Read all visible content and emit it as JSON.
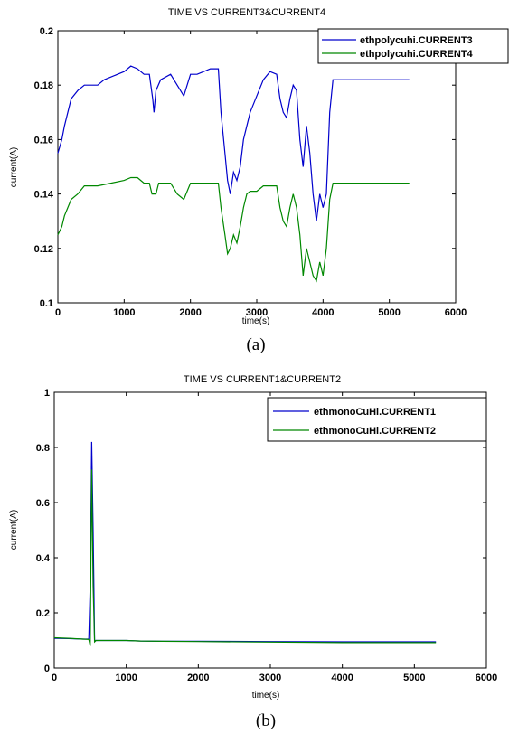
{
  "chart_data": [
    {
      "type": "line",
      "title": "TIME VS CURRENT3&CURRENT4",
      "xlabel": "time(s)",
      "ylabel": "current(A)",
      "caption": "(a)",
      "xlim": [
        0,
        6000
      ],
      "ylim": [
        0.1,
        0.2
      ],
      "xticks": [
        0,
        1000,
        2000,
        3000,
        4000,
        5000,
        6000
      ],
      "xtick_labels": [
        "0",
        "1000",
        "2000",
        "3000",
        "4000",
        "5000",
        "6000"
      ],
      "yticks": [
        0.1,
        0.12,
        0.14,
        0.16,
        0.18,
        0.2
      ],
      "ytick_labels": [
        "0.1",
        "0.12",
        "0.14",
        "0.16",
        "0.18",
        "0.2"
      ],
      "grid": false,
      "legend_position": "top-right",
      "series": [
        {
          "name": "ethpolycuhi.CURRENT3",
          "color": "#0000cc",
          "points": [
            [
              0,
              0.155
            ],
            [
              60,
              0.16
            ],
            [
              100,
              0.165
            ],
            [
              150,
              0.17
            ],
            [
              200,
              0.175
            ],
            [
              300,
              0.178
            ],
            [
              400,
              0.18
            ],
            [
              600,
              0.18
            ],
            [
              700,
              0.182
            ],
            [
              900,
              0.184
            ],
            [
              1000,
              0.185
            ],
            [
              1100,
              0.187
            ],
            [
              1200,
              0.186
            ],
            [
              1300,
              0.184
            ],
            [
              1380,
              0.184
            ],
            [
              1430,
              0.175
            ],
            [
              1450,
              0.17
            ],
            [
              1480,
              0.178
            ],
            [
              1550,
              0.182
            ],
            [
              1700,
              0.184
            ],
            [
              1800,
              0.18
            ],
            [
              1900,
              0.176
            ],
            [
              2000,
              0.184
            ],
            [
              2100,
              0.184
            ],
            [
              2200,
              0.185
            ],
            [
              2300,
              0.186
            ],
            [
              2420,
              0.186
            ],
            [
              2460,
              0.17
            ],
            [
              2520,
              0.155
            ],
            [
              2560,
              0.145
            ],
            [
              2600,
              0.14
            ],
            [
              2650,
              0.148
            ],
            [
              2700,
              0.145
            ],
            [
              2750,
              0.15
            ],
            [
              2800,
              0.16
            ],
            [
              2850,
              0.165
            ],
            [
              2900,
              0.17
            ],
            [
              3000,
              0.176
            ],
            [
              3100,
              0.182
            ],
            [
              3200,
              0.185
            ],
            [
              3300,
              0.184
            ],
            [
              3350,
              0.175
            ],
            [
              3400,
              0.17
            ],
            [
              3450,
              0.168
            ],
            [
              3500,
              0.175
            ],
            [
              3550,
              0.18
            ],
            [
              3600,
              0.178
            ],
            [
              3650,
              0.16
            ],
            [
              3700,
              0.15
            ],
            [
              3750,
              0.165
            ],
            [
              3800,
              0.155
            ],
            [
              3850,
              0.14
            ],
            [
              3900,
              0.13
            ],
            [
              3950,
              0.14
            ],
            [
              4000,
              0.135
            ],
            [
              4050,
              0.14
            ],
            [
              4100,
              0.17
            ],
            [
              4150,
              0.182
            ],
            [
              4300,
              0.182
            ],
            [
              5300,
              0.182
            ]
          ]
        },
        {
          "name": "ethpolycuhi.CURRENT4",
          "color": "#008800",
          "points": [
            [
              0,
              0.125
            ],
            [
              60,
              0.128
            ],
            [
              100,
              0.132
            ],
            [
              150,
              0.135
            ],
            [
              200,
              0.138
            ],
            [
              300,
              0.14
            ],
            [
              400,
              0.143
            ],
            [
              600,
              0.143
            ],
            [
              800,
              0.144
            ],
            [
              1000,
              0.145
            ],
            [
              1100,
              0.146
            ],
            [
              1200,
              0.146
            ],
            [
              1300,
              0.144
            ],
            [
              1380,
              0.144
            ],
            [
              1420,
              0.14
            ],
            [
              1480,
              0.14
            ],
            [
              1520,
              0.144
            ],
            [
              1700,
              0.144
            ],
            [
              1800,
              0.14
            ],
            [
              1900,
              0.138
            ],
            [
              2000,
              0.144
            ],
            [
              2200,
              0.144
            ],
            [
              2420,
              0.144
            ],
            [
              2460,
              0.135
            ],
            [
              2520,
              0.125
            ],
            [
              2560,
              0.118
            ],
            [
              2600,
              0.12
            ],
            [
              2650,
              0.125
            ],
            [
              2700,
              0.122
            ],
            [
              2750,
              0.128
            ],
            [
              2800,
              0.135
            ],
            [
              2850,
              0.14
            ],
            [
              2900,
              0.141
            ],
            [
              3000,
              0.141
            ],
            [
              3100,
              0.143
            ],
            [
              3300,
              0.143
            ],
            [
              3350,
              0.135
            ],
            [
              3400,
              0.13
            ],
            [
              3450,
              0.128
            ],
            [
              3500,
              0.135
            ],
            [
              3550,
              0.14
            ],
            [
              3600,
              0.135
            ],
            [
              3650,
              0.125
            ],
            [
              3700,
              0.11
            ],
            [
              3750,
              0.12
            ],
            [
              3800,
              0.115
            ],
            [
              3850,
              0.11
            ],
            [
              3900,
              0.108
            ],
            [
              3950,
              0.115
            ],
            [
              4000,
              0.11
            ],
            [
              4050,
              0.12
            ],
            [
              4100,
              0.138
            ],
            [
              4150,
              0.144
            ],
            [
              5300,
              0.144
            ]
          ]
        }
      ]
    },
    {
      "type": "line",
      "title": "TIME VS CURRENT1&CURRENT2",
      "xlabel": "time(s)",
      "ylabel": "current(A)",
      "caption": "(b)",
      "xlim": [
        0,
        6000
      ],
      "ylim": [
        0,
        1
      ],
      "xticks": [
        0,
        1000,
        2000,
        3000,
        4000,
        5000,
        6000
      ],
      "xtick_labels": [
        "0",
        "1000",
        "2000",
        "3000",
        "4000",
        "5000",
        "6000"
      ],
      "yticks": [
        0,
        0.2,
        0.4,
        0.6,
        0.8,
        1
      ],
      "ytick_labels": [
        "0",
        "0.2",
        "0.4",
        "0.6",
        "0.8",
        "1"
      ],
      "grid": false,
      "legend_position": "top-right",
      "series": [
        {
          "name": "ethmonoCuHi.CURRENT1",
          "color": "#0000cc",
          "points": [
            [
              0,
              0.108
            ],
            [
              200,
              0.107
            ],
            [
              400,
              0.105
            ],
            [
              480,
              0.105
            ],
            [
              500,
              0.3
            ],
            [
              520,
              0.82
            ],
            [
              540,
              0.5
            ],
            [
              560,
              0.1
            ],
            [
              580,
              0.1
            ],
            [
              800,
              0.1
            ],
            [
              1000,
              0.1
            ],
            [
              1200,
              0.098
            ],
            [
              1500,
              0.097
            ],
            [
              2000,
              0.097
            ],
            [
              3000,
              0.096
            ],
            [
              4000,
              0.095
            ],
            [
              5300,
              0.095
            ]
          ]
        },
        {
          "name": "ethmonoCuHi.CURRENT2",
          "color": "#008800",
          "points": [
            [
              0,
              0.11
            ],
            [
              200,
              0.108
            ],
            [
              400,
              0.105
            ],
            [
              480,
              0.104
            ],
            [
              500,
              0.08
            ],
            [
              520,
              0.72
            ],
            [
              540,
              0.3
            ],
            [
              560,
              0.095
            ],
            [
              580,
              0.1
            ],
            [
              800,
              0.1
            ],
            [
              1000,
              0.1
            ],
            [
              1200,
              0.098
            ],
            [
              1500,
              0.097
            ],
            [
              2000,
              0.096
            ],
            [
              3000,
              0.094
            ],
            [
              4000,
              0.092
            ],
            [
              5300,
              0.092
            ]
          ]
        }
      ]
    }
  ]
}
